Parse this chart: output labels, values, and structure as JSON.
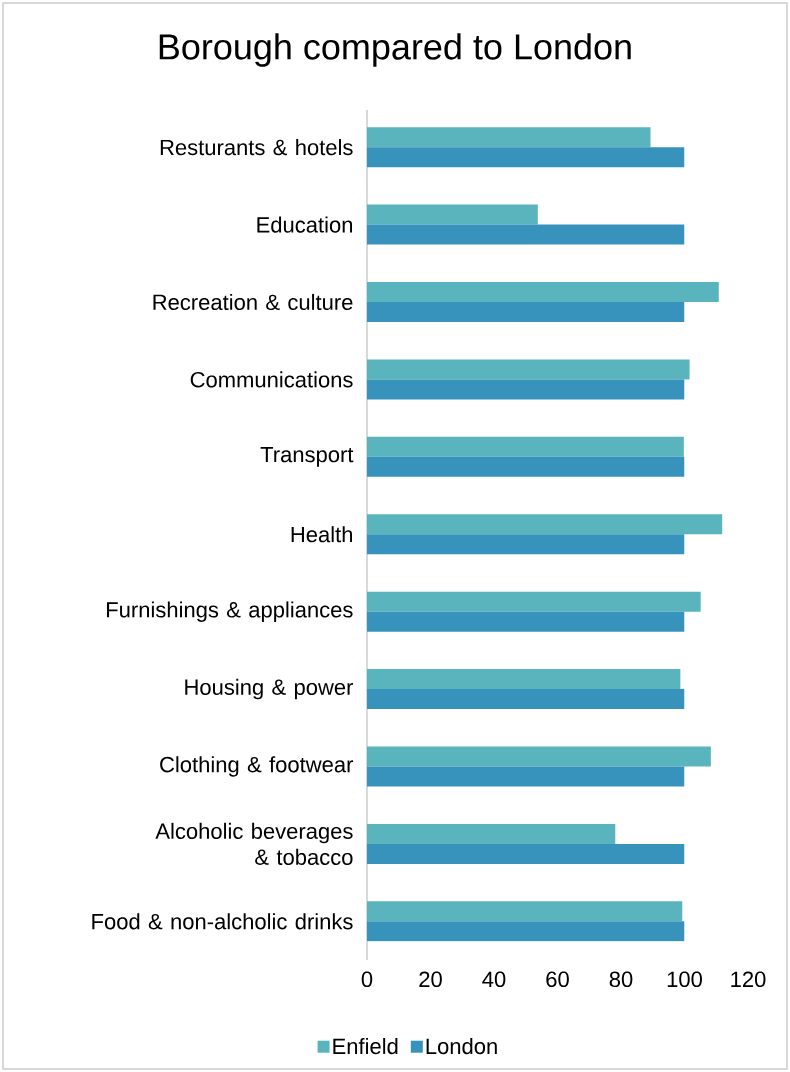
{
  "chart_data": {
    "type": "bar",
    "orientation": "horizontal",
    "title": "Borough compared to London",
    "categories": [
      "Resturants & hotels",
      "Education",
      "Recreation & culture",
      "Communications",
      "Transport",
      "Health",
      "Furnishings & appliances",
      "Housing & power",
      "Clothing & footwear",
      "Alcoholic beverages & tobacco",
      "Food & non-alcholic drinks"
    ],
    "series": [
      {
        "name": "Enfield",
        "color": "#5ab4be",
        "values": [
          89.3,
          53.8,
          110.8,
          101.6,
          99.8,
          111.9,
          105.1,
          98.7,
          108.3,
          78.2,
          99.3
        ]
      },
      {
        "name": "London",
        "color": "#3793bb",
        "values": [
          100,
          100,
          100,
          100,
          100,
          100,
          100,
          100,
          100,
          100,
          100
        ]
      }
    ],
    "xlim": [
      0,
      120
    ],
    "xticks": [
      0,
      20,
      40,
      60,
      80,
      100,
      120
    ],
    "legend": "bottom"
  }
}
